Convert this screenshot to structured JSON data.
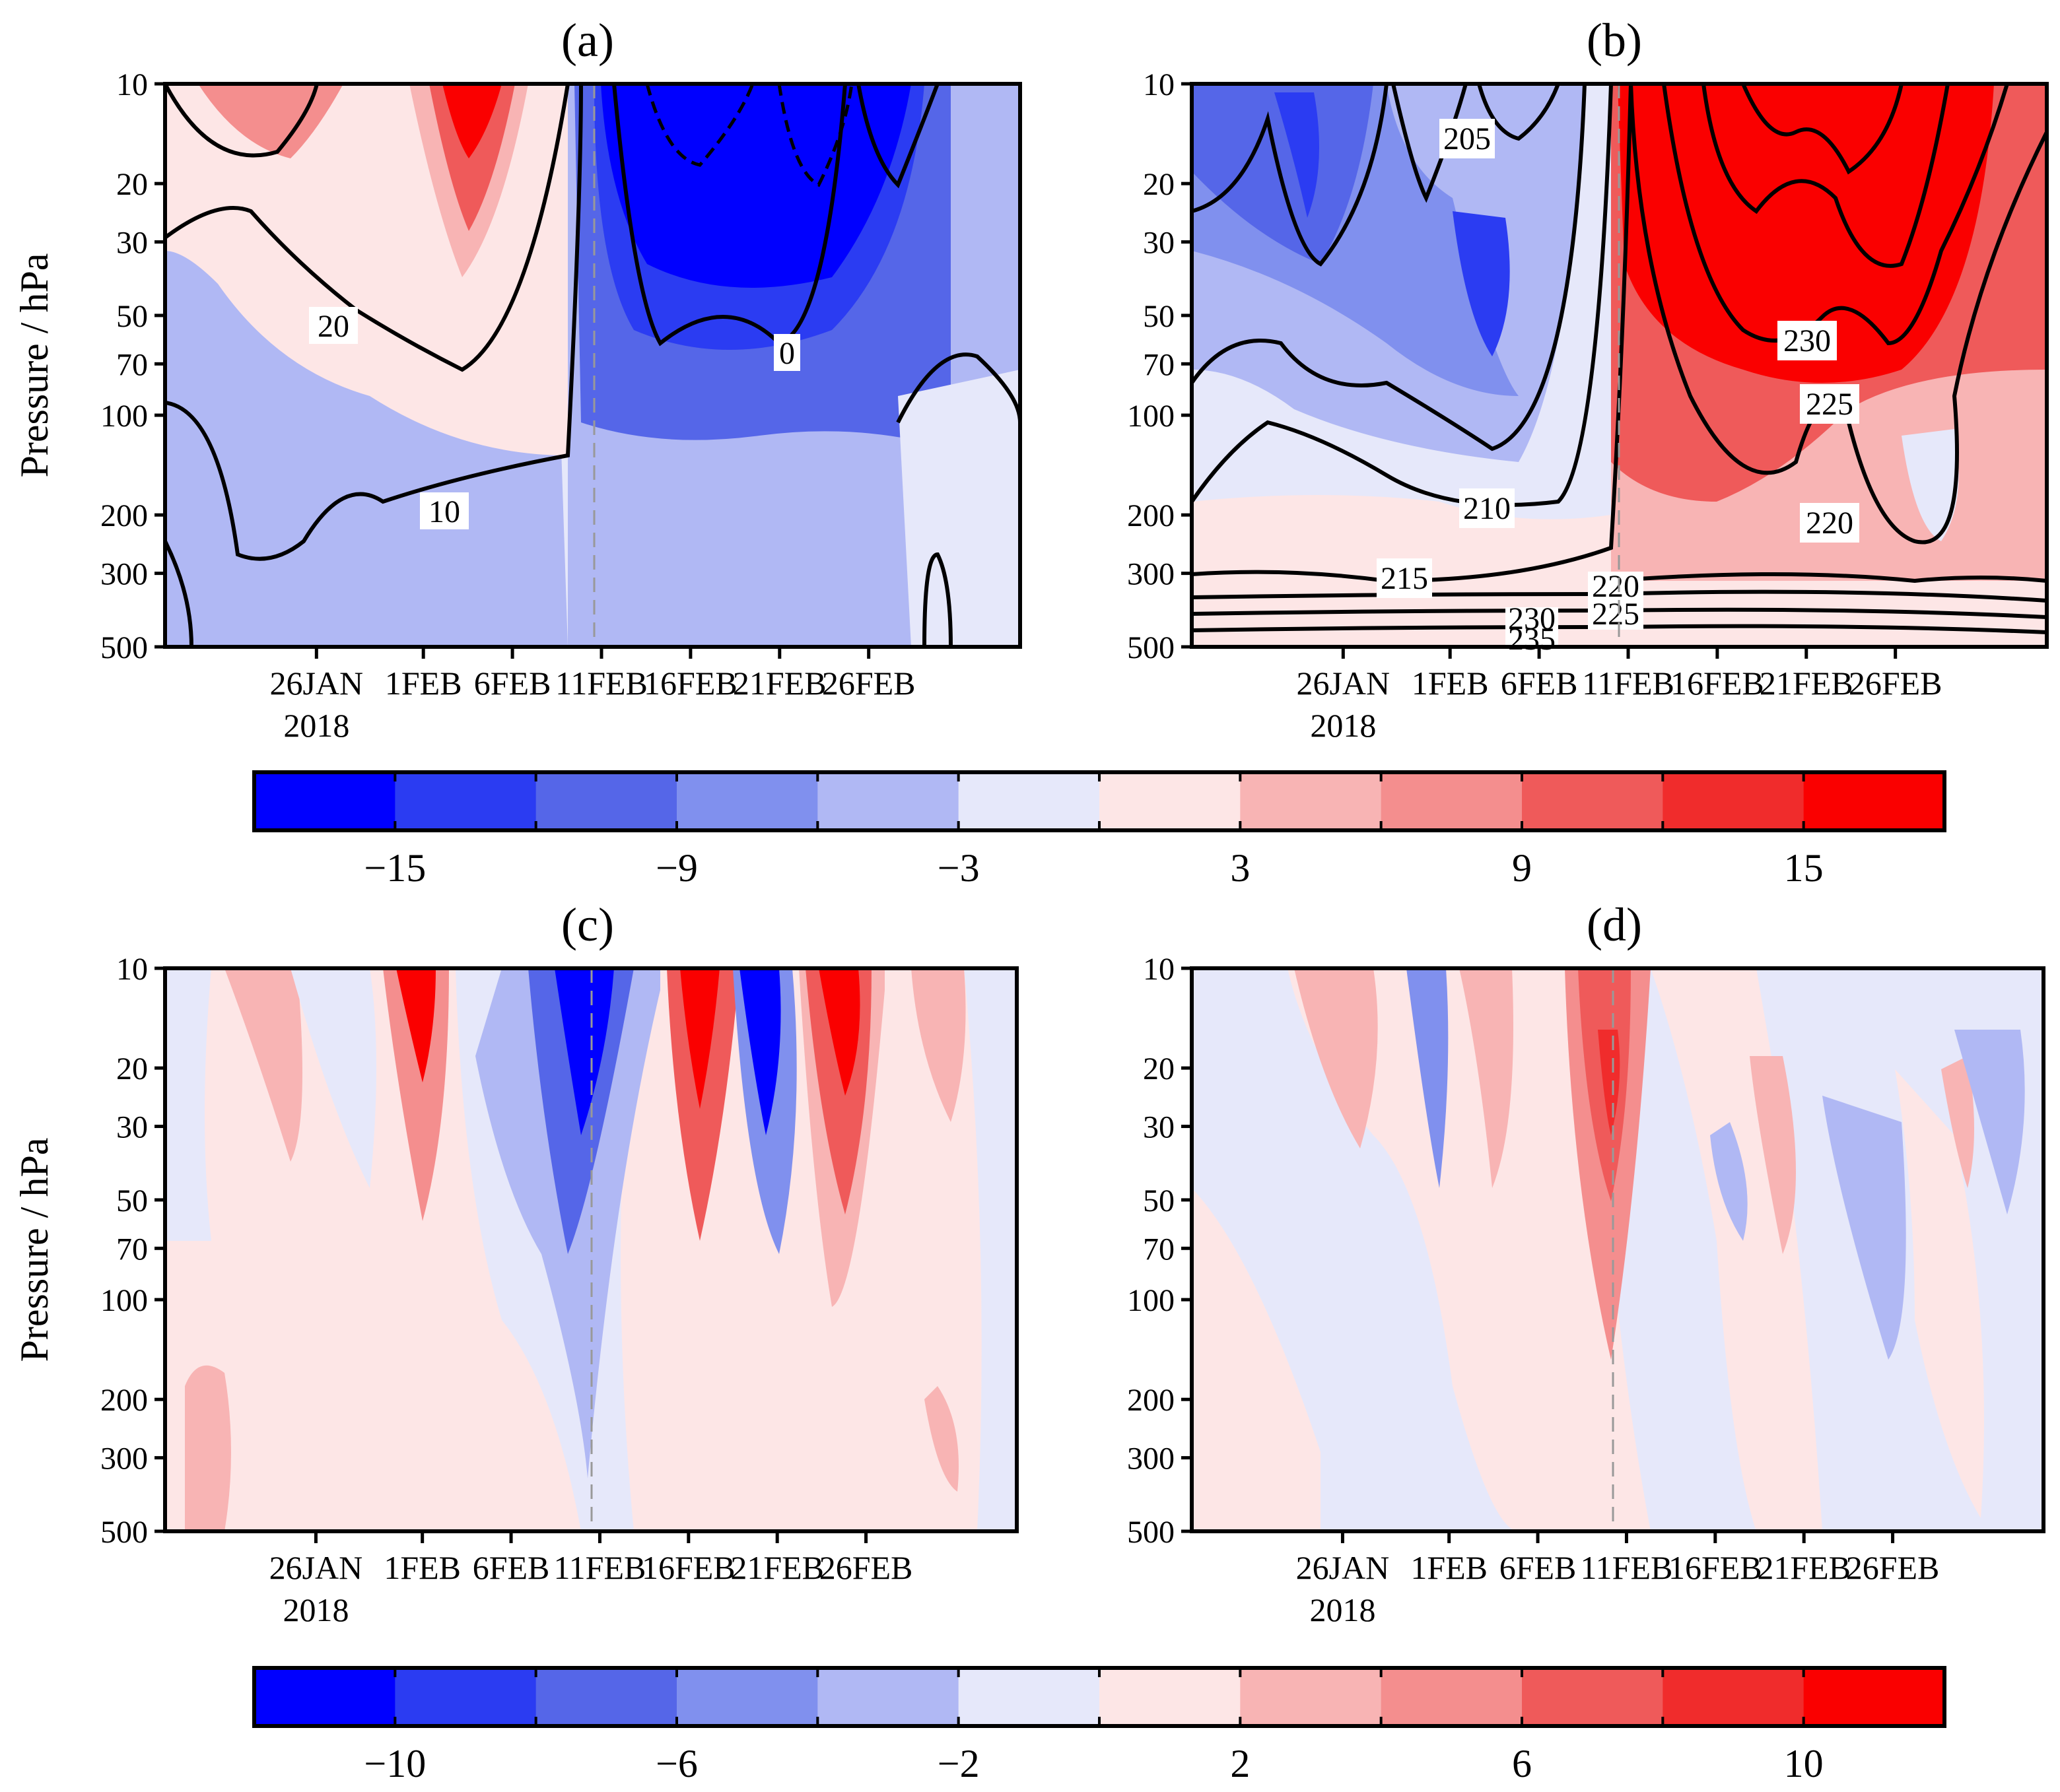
{
  "chart_data": [
    {
      "type": "heatmap",
      "panel": "(a)",
      "ylabel": "Pressure / hPa",
      "y_ticks": [
        "10",
        "20",
        "30",
        "50",
        "70",
        "100",
        "200",
        "300",
        "500"
      ],
      "x_ticks": [
        "26JAN",
        "1FEB",
        "6FEB",
        "11FEB",
        "16FEB",
        "21FEB",
        "26FEB"
      ],
      "x_year": "2018",
      "contour_labels": [
        "20",
        "10",
        "0"
      ]
    },
    {
      "type": "heatmap",
      "panel": "(b)",
      "ylabel": "",
      "y_ticks": [
        "10",
        "20",
        "30",
        "50",
        "70",
        "100",
        "200",
        "300",
        "500"
      ],
      "x_ticks": [
        "26JAN",
        "1FEB",
        "6FEB",
        "11FEB",
        "16FEB",
        "21FEB",
        "26FEB"
      ],
      "x_year": "2018",
      "contour_labels": [
        "205",
        "210",
        "215",
        "220",
        "225",
        "230",
        "225",
        "220",
        "230",
        "235"
      ]
    },
    {
      "type": "heatmap",
      "panel": "(c)",
      "ylabel": "Pressure / hPa",
      "y_ticks": [
        "10",
        "20",
        "30",
        "50",
        "70",
        "100",
        "200",
        "300",
        "500"
      ],
      "x_ticks": [
        "26JAN",
        "1FEB",
        "6FEB",
        "11FEB",
        "16FEB",
        "21FEB",
        "26FEB"
      ],
      "x_year": "2018",
      "contour_labels": []
    },
    {
      "type": "heatmap",
      "panel": "(d)",
      "ylabel": "",
      "y_ticks": [
        "10",
        "20",
        "30",
        "50",
        "70",
        "100",
        "200",
        "300",
        "500"
      ],
      "x_ticks": [
        "26JAN",
        "1FEB",
        "6FEB",
        "11FEB",
        "16FEB",
        "21FEB",
        "26FEB"
      ],
      "x_year": "2018",
      "contour_labels": []
    }
  ],
  "colorbars": [
    {
      "labels": [
        "−15",
        "−9",
        "−3",
        "3",
        "9",
        "15"
      ]
    },
    {
      "labels": [
        "−10",
        "−6",
        "−2",
        "2",
        "6",
        "10"
      ]
    }
  ],
  "colors": [
    "#0000ff",
    "#2b3cf2",
    "#5566e8",
    "#8090ee",
    "#b0b8f4",
    "#e6e8fa",
    "#fde6e6",
    "#f8b4b4",
    "#f48e8e",
    "#ef5a5a",
    "#f02c2c",
    "#fa0000"
  ]
}
